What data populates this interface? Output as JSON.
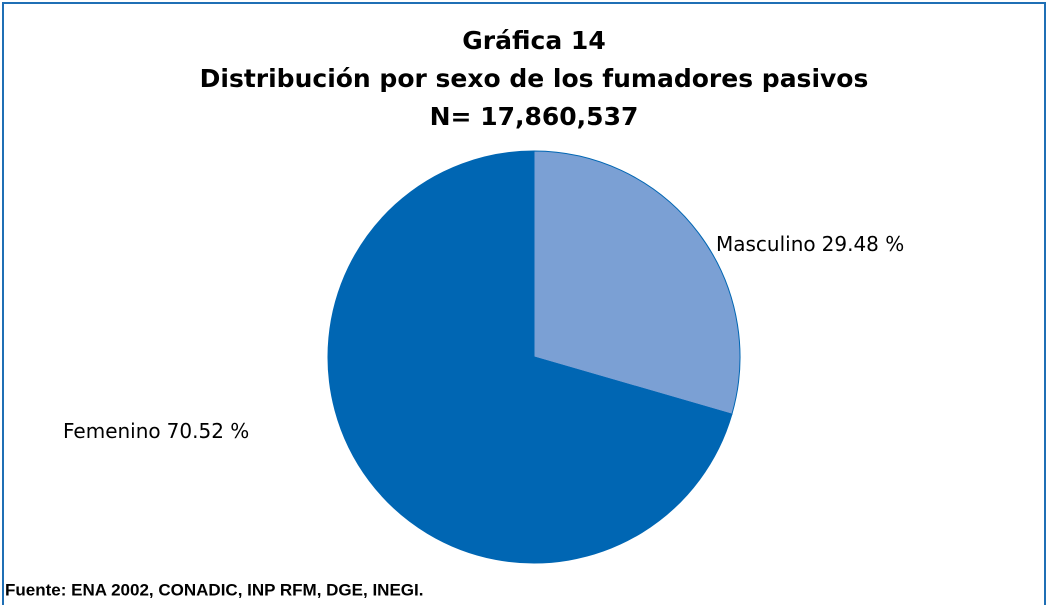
{
  "chart_data": {
    "type": "pie",
    "title": [
      "Gráfica 14",
      "Distribución por sexo de los fumadores pasivos",
      "N= 17,860,537"
    ],
    "categories": [
      "Masculino",
      "Femenino"
    ],
    "values": [
      29.48,
      70.52
    ],
    "value_labels": [
      "29.48 %",
      "70.52 %"
    ],
    "colors": [
      "#7ba0d4",
      "#0066b3"
    ],
    "source": "Fuente: ENA 2002, CONADIC, INP RFM, DGE, INEGI."
  }
}
